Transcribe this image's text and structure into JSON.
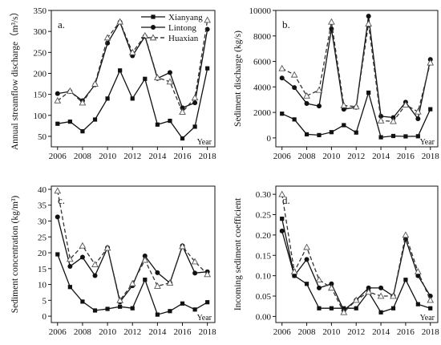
{
  "chart_data": [
    {
      "panel": "a.",
      "type": "line",
      "ylabel": "Annual streamflow discharge（m³/s）",
      "xlabel": "Year",
      "x": [
        2006,
        2007,
        2008,
        2009,
        2010,
        2011,
        2012,
        2013,
        2014,
        2015,
        2016,
        2017,
        2018
      ],
      "xlim": [
        2005.5,
        2018.6
      ],
      "ylim": [
        25,
        350
      ],
      "xticks": [
        "2006",
        "2008",
        "2010",
        "2012",
        "2014",
        "2016",
        "2018"
      ],
      "yticks": [
        "50",
        "100",
        "150",
        "200",
        "250",
        "300",
        "350"
      ],
      "legend": {
        "placement": "top-right",
        "entries": [
          "Xianyang",
          "Lintong",
          "Huaxian"
        ]
      },
      "series": [
        {
          "name": "Xianyang",
          "marker": "square",
          "dash": "solid",
          "values": [
            80,
            85,
            62,
            90,
            140,
            207,
            140,
            187,
            78,
            87,
            45,
            73,
            212
          ]
        },
        {
          "name": "Lintong",
          "marker": "circle",
          "dash": "solid",
          "values": [
            152,
            157,
            135,
            173,
            272,
            322,
            242,
            288,
            188,
            202,
            118,
            130,
            305
          ]
        },
        {
          "name": "Huaxian",
          "marker": "triangle-open",
          "dash": "dashed",
          "values": [
            135,
            158,
            130,
            175,
            285,
            323,
            250,
            290,
            190,
            180,
            108,
            142,
            327
          ]
        }
      ]
    },
    {
      "panel": "b.",
      "type": "line",
      "ylabel": "Sediment discharge (kg/s)",
      "xlabel": "Year",
      "x": [
        2006,
        2007,
        2008,
        2009,
        2010,
        2011,
        2012,
        2013,
        2014,
        2015,
        2016,
        2017,
        2018
      ],
      "xlim": [
        2005.5,
        2018.6
      ],
      "ylim": [
        -700,
        10000
      ],
      "xticks": [
        "2006",
        "2008",
        "2010",
        "2012",
        "2014",
        "2016",
        "2018"
      ],
      "yticks": [
        "0",
        "2000",
        "4000",
        "6000",
        "8000",
        "10000"
      ],
      "series": [
        {
          "name": "Xianyang",
          "marker": "square",
          "dash": "solid",
          "values": [
            1900,
            1450,
            280,
            220,
            450,
            1000,
            420,
            3550,
            50,
            150,
            120,
            130,
            2250
          ]
        },
        {
          "name": "Lintong",
          "marker": "circle",
          "dash": "solid",
          "values": [
            4700,
            3950,
            2700,
            2500,
            8550,
            2250,
            2400,
            9550,
            1700,
            1600,
            2800,
            1500,
            6150
          ]
        },
        {
          "name": "Huaxian",
          "marker": "triangle-open",
          "dash": "dashed",
          "values": [
            5450,
            4950,
            3300,
            3750,
            9100,
            2550,
            2450,
            8950,
            1350,
            1300,
            2600,
            2050,
            5900
          ]
        }
      ]
    },
    {
      "panel": "c.",
      "type": "line",
      "ylabel": "Sediment concentration (kg/m³)",
      "xlabel": "Year",
      "x": [
        2006,
        2007,
        2008,
        2009,
        2010,
        2011,
        2012,
        2013,
        2014,
        2015,
        2016,
        2017,
        2018
      ],
      "xlim": [
        2005.5,
        2018.6
      ],
      "ylim": [
        -2,
        41
      ],
      "xticks": [
        "2006",
        "2008",
        "2010",
        "2012",
        "2014",
        "2016",
        "2018"
      ],
      "yticks": [
        "0",
        "5",
        "10",
        "15",
        "20",
        "25",
        "30",
        "35",
        "40"
      ],
      "series": [
        {
          "name": "Xianyang",
          "marker": "square",
          "dash": "solid",
          "values": [
            19.5,
            9.2,
            4.6,
            1.8,
            2.3,
            3.0,
            2.5,
            11.5,
            0.5,
            1.6,
            4.0,
            2.1,
            4.4
          ]
        },
        {
          "name": "Lintong",
          "marker": "circle",
          "dash": "solid",
          "values": [
            31.3,
            15.7,
            18.6,
            12.8,
            21.6,
            4.5,
            9.6,
            19.0,
            13.7,
            10.5,
            22.2,
            13.6,
            14.0
          ]
        },
        {
          "name": "Huaxian",
          "marker": "triangle-open",
          "dash": "dashed",
          "values": [
            39.5,
            18.0,
            22.2,
            16.3,
            21.5,
            5.0,
            10.3,
            17.7,
            9.5,
            10.5,
            22.0,
            17.2,
            13.2
          ]
        }
      ]
    },
    {
      "panel": "d.",
      "type": "line",
      "ylabel": "Incoming sediment coefficient",
      "xlabel": "Year",
      "x": [
        2006,
        2007,
        2008,
        2009,
        2010,
        2011,
        2012,
        2013,
        2014,
        2015,
        2016,
        2017,
        2018
      ],
      "xlim": [
        2005.5,
        2018.6
      ],
      "ylim": [
        -0.015,
        0.32
      ],
      "xticks": [
        "2006",
        "2008",
        "2010",
        "2012",
        "2014",
        "2016",
        "2018"
      ],
      "yticks": [
        "0.00",
        "0.05",
        "0.10",
        "0.15",
        "0.20",
        "0.25",
        "0.30"
      ],
      "series": [
        {
          "name": "Xianyang",
          "marker": "square",
          "dash": "solid",
          "values": [
            0.24,
            0.1,
            0.08,
            0.02,
            0.02,
            0.02,
            0.02,
            0.06,
            0.01,
            0.02,
            0.09,
            0.03,
            0.02
          ]
        },
        {
          "name": "Lintong",
          "marker": "circle",
          "dash": "solid",
          "values": [
            0.21,
            0.1,
            0.14,
            0.07,
            0.08,
            0.015,
            0.04,
            0.07,
            0.07,
            0.05,
            0.19,
            0.1,
            0.05
          ]
        },
        {
          "name": "Huaxian",
          "marker": "triangle-open",
          "dash": "dashed",
          "values": [
            0.3,
            0.11,
            0.17,
            0.09,
            0.07,
            0.01,
            0.04,
            0.06,
            0.05,
            0.05,
            0.2,
            0.11,
            0.04
          ]
        }
      ]
    }
  ]
}
